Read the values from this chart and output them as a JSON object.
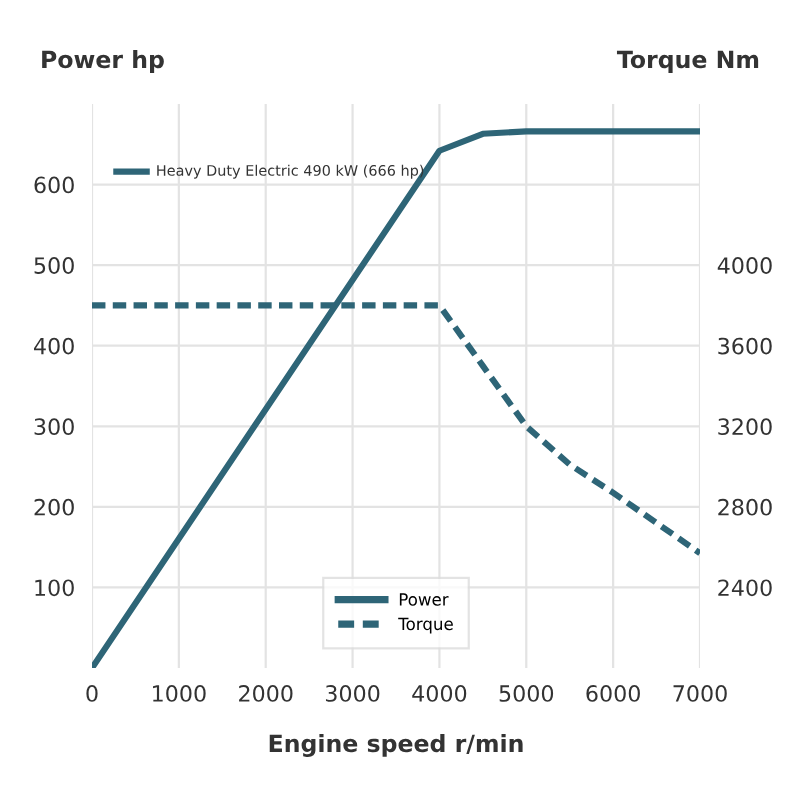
{
  "chart_data": {
    "type": "line",
    "xlabel": "Engine speed r/min",
    "ylabel": "Power hp",
    "y2label": "Torque Nm",
    "annotations": [
      "Heavy Duty Electric 490 kW (666 hp)"
    ],
    "series": [
      {
        "name": "Power",
        "color": "#2e6577",
        "line_style": "solid",
        "x": [
          0,
          4000,
          4500,
          5000,
          7000
        ],
        "values": [
          0,
          642,
          663,
          666,
          666
        ]
      },
      {
        "name": "Torque",
        "color": "#2e6577",
        "line_style": "dashed",
        "axis": "y2",
        "x": [
          0,
          4000,
          4500,
          5000,
          5500,
          6000,
          6500,
          7000
        ],
        "values": [
          3800,
          3800,
          3500,
          3200,
          3010,
          2870,
          2720,
          2570
        ]
      }
    ],
    "xlim": [
      0,
      7000
    ],
    "xticks": [
      0,
      1000,
      2000,
      3000,
      4000,
      5000,
      6000,
      7000
    ],
    "ylim": [
      0,
      700
    ],
    "yticks": [
      100,
      200,
      300,
      400,
      500,
      600
    ],
    "y2lim": [
      2000,
      4800
    ],
    "y2ticks": [
      2400,
      2800,
      3200,
      3600,
      4000
    ],
    "grid": true,
    "legend": "bottom",
    "marker": "none"
  }
}
